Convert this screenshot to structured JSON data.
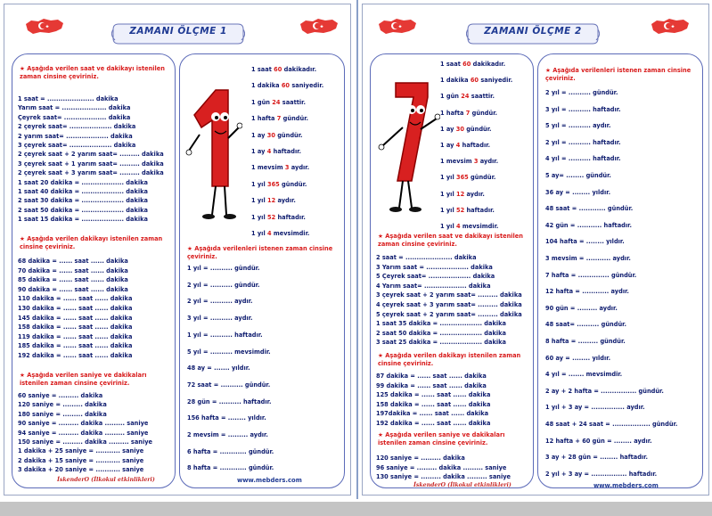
{
  "sheet1": {
    "title": "ZAMANI ÖLÇME  1",
    "left": {
      "h1": [
        "Aşağıda verilen saat ve dakikayı istenilen",
        "zaman cinsine çeviriniz."
      ],
      "g1": [
        "1 saat = ..................... dakika",
        "Yarım saat = .................... dakika",
        "Çeyrek saat= ................... dakika",
        "2 çeyrek saat= ................... dakika",
        "2 yarım saat= ................... dakika",
        "3 çeyrek saat= ................... dakika",
        "2 çeyrek saat + 2 yarım saat= ......... dakika",
        "3 çeyrek saat + 1 yarım saat= ......... dakika",
        "2 çeyrek saat + 3 yarım saat= ......... dakika",
        "1 saat 20 dakika = ................... dakika",
        "1 saat 40 dakika = ................... dakika",
        "2 saat 30 dakika = ................... dakika",
        "2 saat 50 dakika = ................... dakika",
        "1 saat 15 dakika = ................... dakika"
      ],
      "h2": [
        "Aşağıda verilen dakikayı istenilen zaman",
        "cinsine çeviriniz."
      ],
      "g2": [
        "68 dakika = ...... saat ...... dakika",
        "70 dakika = ...... saat ...... dakika",
        "85 dakika = ...... saat ...... dakika",
        "90 dakika = ...... saat ...... dakika",
        "110 dakika = ...... saat ...... dakika",
        "130 dakika = ...... saat ...... dakika",
        "145 dakika = ...... saat ...... dakika",
        "158 dakika = ...... saat ...... dakika",
        "119 dakika = ...... saat ...... dakika",
        "185 dakika = ...... saat ...... dakika",
        "192 dakika = ...... saat ...... dakika"
      ],
      "h3": [
        "Aşağıda verilen saniye ve dakikaları",
        "istenilen zaman cinsine çeviriniz."
      ],
      "g3": [
        "60 saniye = ......... dakika",
        "120 saniye = ......... dakika",
        "180 saniye = ......... dakika",
        "90 saniye = ......... dakika ......... saniye",
        "94 saniye = ......... dakika ......... saniye",
        "150 saniye = ......... dakika ......... saniye",
        "1 dakika + 25 saniye = ........... saniye",
        "2 dakika + 15 saniye = ........... saniye",
        "3 dakika + 20 saniye = ........... saniye"
      ],
      "footer": "İskenderO (İlkokul etkinlikleri)"
    },
    "right": {
      "facts": [
        {
          "pre": "1 saat ",
          "num": "60",
          "post": " dakikadır."
        },
        {
          "pre": "1 dakika ",
          "num": "60",
          "post": " saniyedir."
        },
        {
          "pre": "1 gün ",
          "num": "24",
          "post": " saattir."
        },
        {
          "pre": "1 hafta ",
          "num": "7",
          "post": " gündür."
        },
        {
          "pre": "1 ay ",
          "num": "30",
          "post": " gündür."
        },
        {
          "pre": "1 ay ",
          "num": "4",
          "post": " haftadır."
        },
        {
          "pre": "1 mevsim ",
          "num": "3",
          "post": " aydır."
        },
        {
          "pre": "1 yıl ",
          "num": "365",
          "post": " gündür."
        },
        {
          "pre": "1 yıl ",
          "num": "12",
          "post": " aydır."
        },
        {
          "pre": "1 yıl ",
          "num": "52",
          "post": " haftadır."
        },
        {
          "pre": "1 yıl ",
          "num": "4",
          "post": " mevsimdir."
        }
      ],
      "h1": [
        "Aşağıda verilenleri istenen zaman cinsine",
        "çeviriniz."
      ],
      "g1": [
        "1 yıl = .......... gündür.",
        "2 yıl = .......... gündür.",
        "2 yıl = .......... aydır.",
        "3 yıl = .......... aydır.",
        "1 yıl = .......... haftadır.",
        "5 yıl = .......... mevsimdir.",
        "48 ay = ....... yıldır.",
        "72 saat = .......... gündür.",
        "28 gün = .......... haftadır.",
        "156 hafta = ........ yıldır.",
        "2 mevsim = ......... aydır.",
        "6 hafta = ............ gündür.",
        "8 hafta = ............ gündür."
      ],
      "footer": "www.mebders.com"
    }
  },
  "sheet2": {
    "title": "ZAMANI ÖLÇME  2",
    "left": {
      "facts": [
        {
          "pre": "1 saat ",
          "num": "60",
          "post": " dakikadır."
        },
        {
          "pre": "1 dakika ",
          "num": "60",
          "post": " saniyedir."
        },
        {
          "pre": "1 gün ",
          "num": "24",
          "post": " saattir."
        },
        {
          "pre": "1 hafta ",
          "num": "7",
          "post": " gündür."
        },
        {
          "pre": "1 ay ",
          "num": "30",
          "post": " gündür."
        },
        {
          "pre": "1 ay ",
          "num": "4",
          "post": " haftadır."
        },
        {
          "pre": "1 mevsim ",
          "num": "3",
          "post": " aydır."
        },
        {
          "pre": "1 yıl ",
          "num": "365",
          "post": " gündür."
        },
        {
          "pre": "1 yıl ",
          "num": "12",
          "post": " aydır."
        },
        {
          "pre": "1 yıl ",
          "num": "52",
          "post": " haftadır."
        },
        {
          "pre": "1 yıl ",
          "num": "4",
          "post": " mevsimdir."
        }
      ],
      "h1": [
        "Aşağıda verilen saat ve dakikayı istenilen",
        "zaman cinsine çeviriniz."
      ],
      "g1": [
        "2 saat = ..................... dakika",
        "3 Yarım saat = ................... dakika",
        "5 Çeyrek saat= ................... dakika",
        "4 Yarım saat= ................... dakika",
        "3 çeyrek saat + 2 yarım saat= ......... dakika",
        "4 çeyrek saat + 3 yarım saat= ......... dakika",
        "5 çeyrek saat + 2 yarım saat= ......... dakika",
        "1 saat 35 dakika = ................... dakika",
        "2 saat 50 dakika = ................... dakika",
        "3 saat 25 dakika = ................... dakika"
      ],
      "h2": [
        "Aşağıda verilen dakikayı istenilen zaman",
        "cinsine çeviriniz."
      ],
      "g2": [
        "87 dakika = ...... saat ...... dakika",
        "99 dakika = ...... saat ...... dakika",
        "125 dakika = ...... saat ...... dakika",
        "158 dakika = ...... saat ...... dakika",
        "197dakika = ...... saat ...... dakika",
        "192 dakika = ...... saat ...... dakika"
      ],
      "h3": [
        "Aşağıda verilen saniye ve dakikaları",
        "istenilen zaman cinsine çeviriniz."
      ],
      "g3": [
        "120 saniye = ......... dakika",
        "96 saniye = ......... dakika ......... saniye",
        "130 saniye = ......... dakika ......... saniye"
      ],
      "footer": "İskenderO (İlkokul etkinlikleri)"
    },
    "right": {
      "h1": [
        "Aşağıda verilenleri istenen zaman cinsine",
        "çeviriniz."
      ],
      "g1": [
        "2 yıl = .......... gündür.",
        "3 yıl = .......... haftadır.",
        "5 yıl = .......... aydır.",
        "2 yıl = .......... haftadır.",
        "4 yıl = .......... haftadır.",
        "5 ay= ........ gündür.",
        "36 ay = ........ yıldır.",
        "48 saat = ............ gündür.",
        "42 gün = ........... haftadır.",
        "104 hafta = ........ yıldır.",
        "3 mevsim = ........... aydır.",
        "7 hafta = .............. gündür.",
        "12 hafta = ............ aydır.",
        "90 gün = ......... aydır.",
        "48 saat= .......... gündür.",
        "8 hafta = ......... gündür.",
        "60 ay = ........ yıldır.",
        "4 yıl = ....... mevsimdir.",
        "2 ay + 2 hafta = ................ gündür.",
        "1 yıl + 3 ay = ............... aydır.",
        "48 saat + 24 saat = ................. gündür.",
        "12 hafta + 60 gün = ........ aydır.",
        "3 ay + 28 gün = ........ haftadır.",
        "2 yıl + 3 ay = ................ haftadır."
      ],
      "footer": "www.mebders.com"
    }
  }
}
